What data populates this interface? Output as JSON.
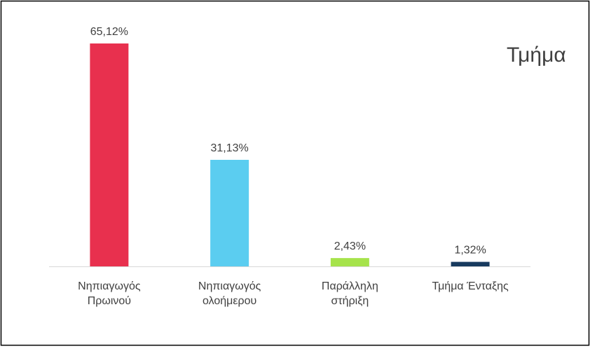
{
  "chart_data": {
    "type": "bar",
    "title": "Τμήμα",
    "categories": [
      "Νηπιαγωγός\nΠρωινού",
      "Νηπιαγωγός\nολοήμερου",
      "Παράλληλη\nστήριξη",
      "Τμήμα Ένταξης"
    ],
    "values": [
      65.12,
      31.13,
      2.43,
      1.32
    ],
    "value_labels": [
      "65,12%",
      "31,13%",
      "2,43%",
      "1,32%"
    ],
    "colors": [
      "#e8304e",
      "#5bcdf0",
      "#a6e34b",
      "#173a5e"
    ]
  }
}
